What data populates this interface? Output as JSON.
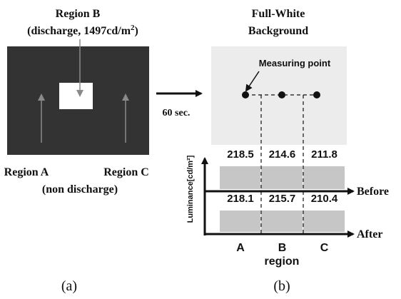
{
  "panel_a": {
    "region_b_title": "Region B",
    "region_b_detail_pre": "(discharge, 1497cd/m",
    "region_b_detail_sup": "2",
    "region_b_detail_post": ")",
    "region_a_label": "Region A",
    "region_c_label": "Region C",
    "non_discharge_label": "(non discharge)",
    "arrow_time_label": "60 sec.",
    "caption": "(a)"
  },
  "panel_b": {
    "background_title_line1": "Full-White",
    "background_title_line2": "Background",
    "measuring_point_label": "Measuring point",
    "y_axis_label": "Luminance[cd/m²]",
    "before_label": "Before",
    "after_label": "After",
    "x_axis_title": "region",
    "caption": "(b)"
  },
  "chart_data": {
    "type": "bar",
    "categories": [
      "A",
      "B",
      "C"
    ],
    "ylabel": "Luminance[cd/m²]",
    "xlabel": "region",
    "series": [
      {
        "name": "Before",
        "values": [
          218.5,
          214.6,
          211.8
        ],
        "labels": [
          "218.5",
          "214.6",
          "211.8"
        ]
      },
      {
        "name": "After",
        "values": [
          218.1,
          215.7,
          210.4
        ],
        "labels": [
          "218.1",
          "215.7",
          "210.4"
        ]
      }
    ]
  },
  "colors": {
    "panel_dark": "#333333",
    "panel_light_bg": "#ececec",
    "bar_fill": "#c6c6c6",
    "line": "#111111",
    "window_white": "#ffffff"
  }
}
